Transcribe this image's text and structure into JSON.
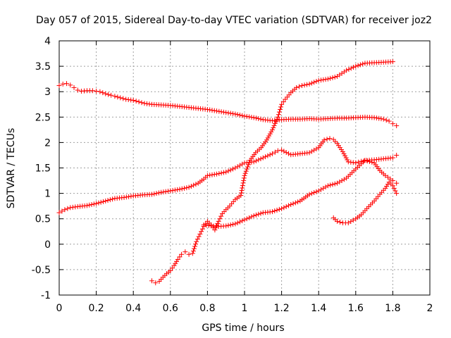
{
  "chart_data": {
    "type": "scatter",
    "title": "Day 057 of 2015, Sidereal Day-to-day VTEC variation (SDTVAR) for receiver joz2",
    "xlabel": "GPS time / hours",
    "ylabel": "SDTVAR / TECUs",
    "xlim": [
      0,
      2
    ],
    "ylim": [
      -1,
      4
    ],
    "x_ticks": [
      "0",
      "0.2",
      "0.4",
      "0.6",
      "0.8",
      "1",
      "1.2",
      "1.4",
      "1.6",
      "1.8",
      "2"
    ],
    "y_ticks": [
      "-1",
      "-0.5",
      "0",
      "0.5",
      "1",
      "1.5",
      "2",
      "2.5",
      "3",
      "3.5",
      "4"
    ],
    "grid": true,
    "marker": "+",
    "color": "#ff0000",
    "series": [
      {
        "x": [
          0,
          0.02,
          0.04,
          0.06,
          0.08,
          0.1,
          0.12,
          0.15,
          0.18,
          0.2,
          0.22,
          0.25,
          0.28,
          0.3,
          0.33,
          0.36,
          0.4,
          0.43,
          0.46,
          0.5,
          0.55,
          0.6,
          0.65,
          0.7,
          0.75,
          0.8,
          0.85,
          0.9,
          0.95,
          1.0,
          1.05,
          1.1,
          1.15,
          1.2,
          1.25,
          1.3,
          1.35,
          1.4,
          1.45,
          1.5,
          1.55,
          1.6,
          1.65,
          1.7,
          1.75,
          1.78,
          1.8,
          1.82
        ],
        "y": [
          3.12,
          3.15,
          3.16,
          3.13,
          3.08,
          3.03,
          3.01,
          3.02,
          3.02,
          3.01,
          3.0,
          2.96,
          2.93,
          2.91,
          2.88,
          2.85,
          2.83,
          2.8,
          2.77,
          2.75,
          2.74,
          2.73,
          2.71,
          2.69,
          2.67,
          2.65,
          2.62,
          2.59,
          2.56,
          2.52,
          2.49,
          2.45,
          2.43,
          2.45,
          2.46,
          2.46,
          2.47,
          2.46,
          2.47,
          2.48,
          2.48,
          2.49,
          2.5,
          2.49,
          2.46,
          2.42,
          2.37,
          2.33
        ]
      },
      {
        "x": [
          0,
          0.03,
          0.06,
          0.1,
          0.15,
          0.2,
          0.25,
          0.3,
          0.35,
          0.4,
          0.45,
          0.5,
          0.55,
          0.6,
          0.65,
          0.7,
          0.75,
          0.78,
          0.8,
          0.85,
          0.9,
          0.95,
          1.0,
          1.05,
          1.1,
          1.15,
          1.18,
          1.2,
          1.25,
          1.3,
          1.35,
          1.4,
          1.43,
          1.46,
          1.48,
          1.5,
          1.53,
          1.56,
          1.6,
          1.63,
          1.66,
          1.7,
          1.75,
          1.8,
          1.82
        ],
        "y": [
          0.62,
          0.68,
          0.72,
          0.74,
          0.76,
          0.8,
          0.85,
          0.9,
          0.92,
          0.95,
          0.97,
          0.98,
          1.02,
          1.05,
          1.08,
          1.12,
          1.2,
          1.28,
          1.35,
          1.38,
          1.42,
          1.5,
          1.6,
          1.62,
          1.7,
          1.78,
          1.84,
          1.85,
          1.76,
          1.78,
          1.8,
          1.9,
          2.05,
          2.08,
          2.06,
          1.98,
          1.82,
          1.62,
          1.6,
          1.63,
          1.65,
          1.66,
          1.68,
          1.7,
          1.75
        ]
      },
      {
        "x": [
          0.5,
          0.52,
          0.54,
          0.56,
          0.58,
          0.6,
          0.62,
          0.64,
          0.66,
          0.68,
          0.7,
          0.72,
          0.74,
          0.76,
          0.78,
          0.8,
          0.82,
          0.84,
          0.86,
          0.88,
          0.9,
          0.92,
          0.95,
          0.98,
          1.0,
          1.03,
          1.06,
          1.09,
          1.12,
          1.15,
          1.18,
          1.2,
          1.22,
          1.25,
          1.28,
          1.31,
          1.35,
          1.4,
          1.45,
          1.5,
          1.55,
          1.6,
          1.65,
          1.7,
          1.75,
          1.8
        ],
        "y": [
          -0.72,
          -0.76,
          -0.73,
          -0.65,
          -0.58,
          -0.52,
          -0.42,
          -0.3,
          -0.2,
          -0.15,
          -0.2,
          -0.18,
          0.05,
          0.2,
          0.35,
          0.45,
          0.38,
          0.28,
          0.45,
          0.6,
          0.68,
          0.75,
          0.88,
          0.96,
          1.35,
          1.65,
          1.8,
          1.9,
          2.05,
          2.25,
          2.5,
          2.75,
          2.85,
          2.98,
          3.08,
          3.12,
          3.15,
          3.22,
          3.25,
          3.3,
          3.42,
          3.5,
          3.56,
          3.57,
          3.58,
          3.59
        ]
      },
      {
        "x": [
          0.78,
          0.82,
          0.86,
          0.9,
          0.95,
          1.0,
          1.05,
          1.1,
          1.15,
          1.2,
          1.25,
          1.3,
          1.35,
          1.4,
          1.45,
          1.5,
          1.55,
          1.6,
          1.65,
          1.7,
          1.73,
          1.76,
          1.8,
          1.82
        ],
        "y": [
          0.38,
          0.36,
          0.35,
          0.36,
          0.4,
          0.48,
          0.56,
          0.62,
          0.64,
          0.7,
          0.78,
          0.85,
          0.98,
          1.05,
          1.15,
          1.2,
          1.3,
          1.48,
          1.65,
          1.6,
          1.45,
          1.35,
          1.25,
          1.2
        ]
      },
      {
        "x": [
          1.48,
          1.5,
          1.53,
          1.56,
          1.6,
          1.63,
          1.66,
          1.7,
          1.73,
          1.76,
          1.78,
          1.8,
          1.82
        ],
        "y": [
          0.52,
          0.45,
          0.42,
          0.42,
          0.5,
          0.58,
          0.7,
          0.85,
          0.98,
          1.1,
          1.22,
          1.15,
          1.0
        ]
      }
    ]
  }
}
